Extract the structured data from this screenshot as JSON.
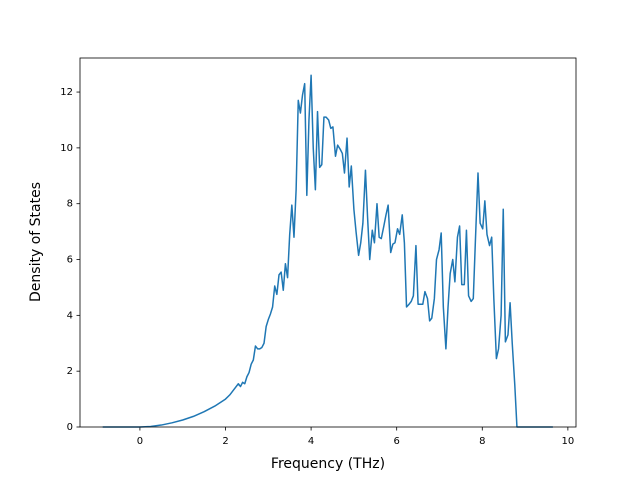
{
  "chart_data": {
    "type": "line",
    "xlabel": "Frequency (THz)",
    "ylabel": "Density of States",
    "xlim": [
      -1.4,
      10.19
    ],
    "ylim": [
      0,
      13.22
    ],
    "xticks": [
      0,
      2,
      4,
      6,
      8,
      10
    ],
    "yticks": [
      0,
      2,
      4,
      6,
      8,
      10,
      12
    ],
    "series": [
      {
        "color": "#1f77b4",
        "x": [
          -0.87,
          -0.5,
          0,
          0.25,
          0.5,
          0.75,
          1.0,
          1.25,
          1.5,
          1.75,
          2.0,
          2.1,
          2.2,
          2.3,
          2.35,
          2.4,
          2.45,
          2.5,
          2.55,
          2.6,
          2.65,
          2.7,
          2.75,
          2.8,
          2.85,
          2.9,
          2.95,
          3.0,
          3.05,
          3.1,
          3.15,
          3.2,
          3.25,
          3.3,
          3.35,
          3.4,
          3.45,
          3.5,
          3.55,
          3.6,
          3.65,
          3.7,
          3.75,
          3.8,
          3.85,
          3.9,
          3.95,
          4.0,
          4.05,
          4.1,
          4.15,
          4.2,
          4.25,
          4.3,
          4.35,
          4.41,
          4.46,
          4.51,
          4.57,
          4.62,
          4.68,
          4.73,
          4.78,
          4.84,
          4.89,
          4.94,
          5.0,
          5.05,
          5.11,
          5.16,
          5.21,
          5.27,
          5.32,
          5.37,
          5.43,
          5.48,
          5.54,
          5.59,
          5.64,
          5.7,
          5.75,
          5.8,
          5.86,
          5.91,
          5.96,
          6.02,
          6.07,
          6.13,
          6.18,
          6.23,
          6.29,
          6.34,
          6.39,
          6.45,
          6.5,
          6.56,
          6.61,
          6.66,
          6.72,
          6.77,
          6.82,
          6.88,
          6.93,
          6.99,
          7.04,
          7.09,
          7.15,
          7.2,
          7.25,
          7.31,
          7.36,
          7.42,
          7.47,
          7.52,
          7.58,
          7.63,
          7.68,
          7.74,
          7.79,
          7.84,
          7.9,
          7.95,
          8.01,
          8.06,
          8.11,
          8.17,
          8.22,
          8.27,
          8.33,
          8.38,
          8.44,
          8.49,
          8.54,
          8.6,
          8.65,
          8.7,
          8.76,
          8.81,
          9.0,
          9.65
        ],
        "values": [
          0,
          0,
          0,
          0.02,
          0.07,
          0.15,
          0.25,
          0.38,
          0.55,
          0.75,
          1.0,
          1.15,
          1.35,
          1.55,
          1.45,
          1.6,
          1.55,
          1.8,
          1.95,
          2.25,
          2.4,
          2.9,
          2.8,
          2.8,
          2.85,
          3.0,
          3.6,
          3.85,
          4.05,
          4.3,
          5.05,
          4.75,
          5.45,
          5.55,
          4.9,
          5.85,
          5.35,
          6.9,
          7.95,
          6.8,
          8.5,
          11.7,
          11.25,
          11.9,
          12.3,
          8.3,
          11.0,
          12.6,
          10.0,
          8.5,
          11.3,
          9.3,
          9.4,
          11.1,
          11.1,
          11.0,
          10.7,
          10.75,
          9.7,
          10.1,
          9.95,
          9.8,
          9.1,
          10.35,
          8.6,
          9.35,
          7.8,
          7.0,
          6.15,
          6.6,
          7.3,
          9.2,
          7.5,
          6.0,
          7.05,
          6.6,
          8.0,
          6.8,
          6.75,
          7.2,
          7.6,
          7.95,
          6.25,
          6.55,
          6.6,
          7.1,
          6.9,
          7.6,
          6.6,
          4.3,
          4.4,
          4.5,
          4.7,
          6.5,
          4.4,
          4.4,
          4.4,
          4.85,
          4.6,
          3.8,
          3.9,
          4.6,
          6.0,
          6.35,
          6.95,
          4.3,
          2.8,
          4.3,
          5.5,
          6.0,
          5.2,
          6.8,
          7.2,
          5.1,
          5.1,
          7.05,
          4.7,
          4.5,
          4.6,
          6.7,
          9.1,
          7.3,
          7.1,
          8.1,
          6.9,
          6.5,
          6.8,
          4.6,
          2.45,
          2.8,
          4.0,
          7.8,
          3.05,
          3.3,
          4.45,
          3.0,
          1.5,
          0,
          0,
          0
        ]
      }
    ]
  }
}
